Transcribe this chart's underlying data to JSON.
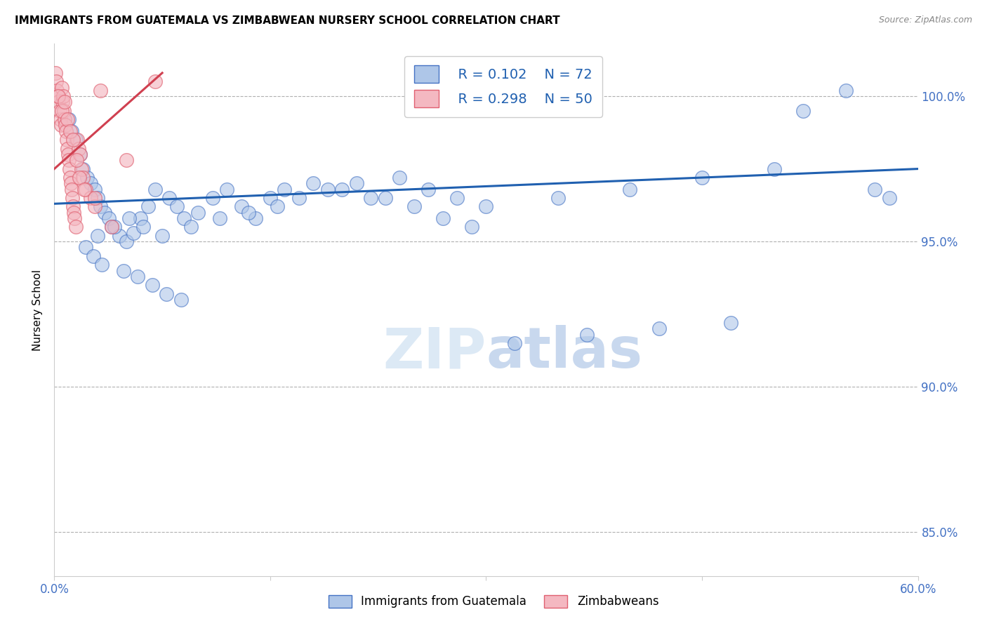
{
  "title": "IMMIGRANTS FROM GUATEMALA VS ZIMBABWEAN NURSERY SCHOOL CORRELATION CHART",
  "source": "Source: ZipAtlas.com",
  "ylabel": "Nursery School",
  "yticks": [
    85.0,
    90.0,
    95.0,
    100.0
  ],
  "ytick_labels": [
    "85.0%",
    "90.0%",
    "95.0%",
    "100.0%"
  ],
  "xmin": 0.0,
  "xmax": 60.0,
  "ymin": 83.5,
  "ymax": 101.8,
  "legend_r1": "R = 0.102",
  "legend_n1": "N = 72",
  "legend_r2": "R = 0.298",
  "legend_n2": "N = 50",
  "color_blue_face": "#aec6e8",
  "color_blue_edge": "#4472c4",
  "color_pink_face": "#f4b8c1",
  "color_pink_edge": "#e06070",
  "color_line_blue": "#2060b0",
  "color_line_pink": "#d04050",
  "color_axis_labels": "#4472c4",
  "color_grid": "#b0b0b0",
  "color_watermark": "#dce9f5",
  "scatter_blue_x": [
    1.0,
    1.2,
    1.5,
    1.8,
    2.0,
    2.3,
    2.5,
    2.8,
    3.0,
    3.2,
    3.5,
    3.8,
    4.0,
    4.5,
    5.0,
    5.5,
    6.0,
    6.5,
    7.0,
    8.0,
    8.5,
    9.0,
    10.0,
    11.0,
    12.0,
    13.0,
    14.0,
    15.0,
    16.0,
    18.0,
    20.0,
    22.0,
    24.0,
    26.0,
    28.0,
    30.0,
    35.0,
    40.0,
    45.0,
    50.0,
    55.0,
    58.0,
    3.0,
    4.2,
    5.2,
    6.2,
    7.5,
    9.5,
    11.5,
    13.5,
    2.2,
    2.7,
    3.3,
    4.8,
    5.8,
    6.8,
    7.8,
    8.8,
    15.5,
    17.0,
    19.0,
    21.0,
    23.0,
    25.0,
    27.0,
    29.0,
    32.0,
    37.0,
    42.0,
    47.0,
    52.0,
    57.0
  ],
  "scatter_blue_y": [
    99.2,
    98.8,
    98.5,
    98.0,
    97.5,
    97.2,
    97.0,
    96.8,
    96.5,
    96.2,
    96.0,
    95.8,
    95.5,
    95.2,
    95.0,
    95.3,
    95.8,
    96.2,
    96.8,
    96.5,
    96.2,
    95.8,
    96.0,
    96.5,
    96.8,
    96.2,
    95.8,
    96.5,
    96.8,
    97.0,
    96.8,
    96.5,
    97.2,
    96.8,
    96.5,
    96.2,
    96.5,
    96.8,
    97.2,
    97.5,
    100.2,
    96.5,
    95.2,
    95.5,
    95.8,
    95.5,
    95.2,
    95.5,
    95.8,
    96.0,
    94.8,
    94.5,
    94.2,
    94.0,
    93.8,
    93.5,
    93.2,
    93.0,
    96.2,
    96.5,
    96.8,
    97.0,
    96.5,
    96.2,
    95.8,
    95.5,
    91.5,
    91.8,
    92.0,
    92.2,
    99.5,
    96.8
  ],
  "scatter_pink_x": [
    0.1,
    0.15,
    0.2,
    0.25,
    0.3,
    0.35,
    0.4,
    0.45,
    0.5,
    0.55,
    0.6,
    0.65,
    0.7,
    0.75,
    0.8,
    0.85,
    0.9,
    0.95,
    1.0,
    1.05,
    1.1,
    1.15,
    1.2,
    1.25,
    1.3,
    1.35,
    1.4,
    1.5,
    1.6,
    1.7,
    1.8,
    1.9,
    2.0,
    2.2,
    2.5,
    2.8,
    3.2,
    4.0,
    5.0,
    7.0,
    0.3,
    0.5,
    0.7,
    0.9,
    1.1,
    1.3,
    1.55,
    1.75,
    2.1,
    2.8
  ],
  "scatter_pink_y": [
    100.8,
    100.5,
    100.2,
    100.0,
    99.8,
    99.5,
    99.2,
    99.0,
    100.3,
    99.8,
    100.0,
    99.5,
    99.2,
    99.0,
    98.8,
    98.5,
    98.2,
    98.0,
    97.8,
    97.5,
    97.2,
    97.0,
    96.8,
    96.5,
    96.2,
    96.0,
    95.8,
    95.5,
    98.5,
    98.2,
    98.0,
    97.5,
    97.2,
    96.8,
    96.5,
    96.2,
    100.2,
    95.5,
    97.8,
    100.5,
    100.0,
    99.5,
    99.8,
    99.2,
    98.8,
    98.5,
    97.8,
    97.2,
    96.8,
    96.5
  ],
  "blue_line_x": [
    0.0,
    60.0
  ],
  "blue_line_y": [
    96.3,
    97.5
  ],
  "pink_line_x": [
    0.0,
    7.5
  ],
  "pink_line_y": [
    97.5,
    100.8
  ]
}
